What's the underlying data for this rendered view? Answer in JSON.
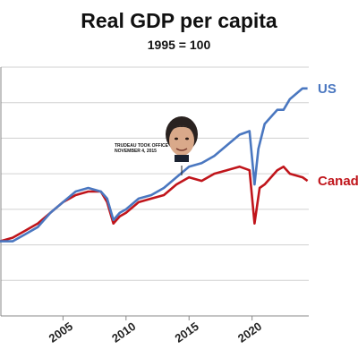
{
  "chart_data": {
    "type": "line",
    "title": "Real GDP per capita",
    "subtitle": "1995 = 100",
    "x_ticks": [
      "2005",
      "2010",
      "2015",
      "2020"
    ],
    "annotation": {
      "line1": "TRUDEAU TOOK OFFICE",
      "line2": "NOVEMBER 4, 2015",
      "x": 2015.8
    },
    "series": [
      {
        "name": "US",
        "color": "#4a77c0",
        "points": [
          [
            2000.0,
            121
          ],
          [
            2001.0,
            121
          ],
          [
            2002.0,
            123
          ],
          [
            2003.0,
            125
          ],
          [
            2004.0,
            129
          ],
          [
            2005.0,
            132
          ],
          [
            2006.0,
            135
          ],
          [
            2007.0,
            136
          ],
          [
            2008.0,
            135
          ],
          [
            2008.5,
            133
          ],
          [
            2009.0,
            127
          ],
          [
            2009.5,
            129
          ],
          [
            2010.0,
            130
          ],
          [
            2011.0,
            133
          ],
          [
            2012.0,
            134
          ],
          [
            2013.0,
            136
          ],
          [
            2014.0,
            139
          ],
          [
            2015.0,
            142
          ],
          [
            2016.0,
            143
          ],
          [
            2017.0,
            145
          ],
          [
            2018.0,
            148
          ],
          [
            2019.0,
            151
          ],
          [
            2019.8,
            152
          ],
          [
            2020.2,
            137
          ],
          [
            2020.5,
            147
          ],
          [
            2021.0,
            154
          ],
          [
            2022.0,
            158
          ],
          [
            2022.5,
            158
          ],
          [
            2023.0,
            161
          ],
          [
            2024.0,
            164
          ],
          [
            2024.4,
            164
          ]
        ]
      },
      {
        "name": "Canada",
        "color": "#c0151b",
        "points": [
          [
            2000.0,
            121
          ],
          [
            2001.0,
            122
          ],
          [
            2002.0,
            124
          ],
          [
            2003.0,
            126
          ],
          [
            2004.0,
            129
          ],
          [
            2005.0,
            132
          ],
          [
            2006.0,
            134
          ],
          [
            2007.0,
            135
          ],
          [
            2008.0,
            135
          ],
          [
            2008.5,
            132
          ],
          [
            2009.0,
            126
          ],
          [
            2009.5,
            128
          ],
          [
            2010.0,
            129
          ],
          [
            2011.0,
            132
          ],
          [
            2012.0,
            133
          ],
          [
            2013.0,
            134
          ],
          [
            2014.0,
            137
          ],
          [
            2015.0,
            139
          ],
          [
            2016.0,
            138
          ],
          [
            2017.0,
            140
          ],
          [
            2018.0,
            141
          ],
          [
            2019.0,
            142
          ],
          [
            2019.8,
            141
          ],
          [
            2020.2,
            126
          ],
          [
            2020.6,
            136
          ],
          [
            2021.0,
            137
          ],
          [
            2022.0,
            141
          ],
          [
            2022.5,
            142
          ],
          [
            2023.0,
            140
          ],
          [
            2024.0,
            139
          ],
          [
            2024.4,
            138
          ]
        ]
      }
    ],
    "xlim": [
      2000,
      2024.5
    ],
    "ylim": [
      100,
      170
    ],
    "grid": "horizontal",
    "legend": "labels at right end of lines"
  }
}
